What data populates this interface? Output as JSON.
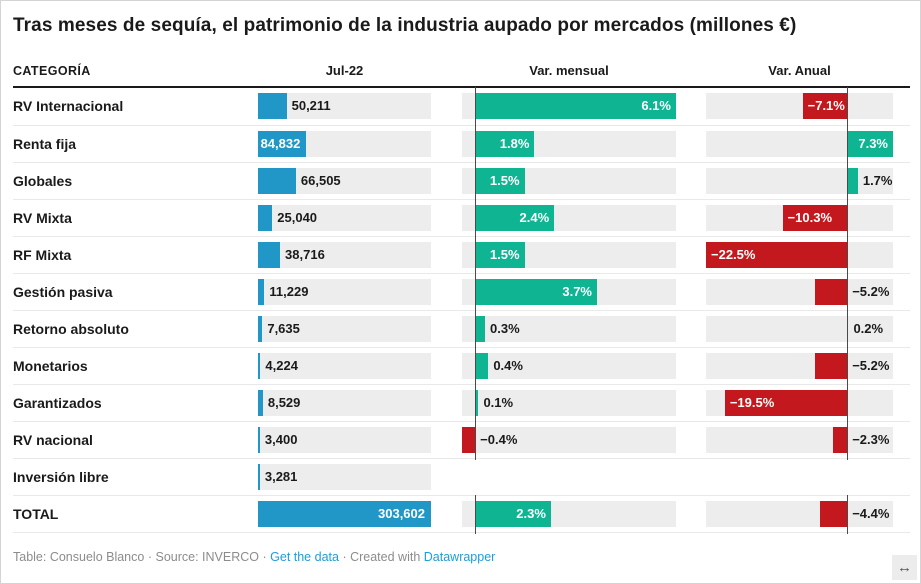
{
  "title": "Tras meses de sequía, el patrimonio de la industria aupado por mercados (millones €)",
  "columns": {
    "category": "CATEGORÍA",
    "jul22": "Jul-22",
    "monthly": "Var. mensual",
    "annual": "Var. Anual"
  },
  "chart_data": {
    "type": "table",
    "title": "Tras meses de sequía, el patrimonio de la industria aupado por mercados (millones €)",
    "bar_columns": {
      "jul22": {
        "label": "Jul-22",
        "max": 303602,
        "color": "#2097c6"
      },
      "monthly": {
        "label": "Var. mensual",
        "domain": [
          -0.4,
          6.1
        ],
        "unit": "%"
      },
      "annual": {
        "label": "Var. Anual",
        "domain": [
          -22.5,
          7.3
        ],
        "unit": "%"
      }
    },
    "rows": [
      {
        "category": "RV Internacional",
        "jul22": 50211,
        "jul22_label": "50,211",
        "monthly": 6.1,
        "monthly_label": "6.1%",
        "annual": -7.1,
        "annual_label": "−7.1%"
      },
      {
        "category": "Renta fija",
        "jul22": 84832,
        "jul22_label": "84,832",
        "monthly": 1.8,
        "monthly_label": "1.8%",
        "annual": 7.3,
        "annual_label": "7.3%"
      },
      {
        "category": "Globales",
        "jul22": 66505,
        "jul22_label": "66,505",
        "monthly": 1.5,
        "monthly_label": "1.5%",
        "annual": 1.7,
        "annual_label": "1.7%"
      },
      {
        "category": "RV Mixta",
        "jul22": 25040,
        "jul22_label": "25,040",
        "monthly": 2.4,
        "monthly_label": "2.4%",
        "annual": -10.3,
        "annual_label": "−10.3%"
      },
      {
        "category": "RF Mixta",
        "jul22": 38716,
        "jul22_label": "38,716",
        "monthly": 1.5,
        "monthly_label": "1.5%",
        "annual": -22.5,
        "annual_label": "−22.5%"
      },
      {
        "category": "Gestión pasiva",
        "jul22": 11229,
        "jul22_label": "11,229",
        "monthly": 3.7,
        "monthly_label": "3.7%",
        "annual": -5.2,
        "annual_label": "−5.2%"
      },
      {
        "category": "Retorno absoluto",
        "jul22": 7635,
        "jul22_label": "7,635",
        "monthly": 0.3,
        "monthly_label": "0.3%",
        "annual": 0.2,
        "annual_label": "0.2%"
      },
      {
        "category": "Monetarios",
        "jul22": 4224,
        "jul22_label": "4,224",
        "monthly": 0.4,
        "monthly_label": "0.4%",
        "annual": -5.2,
        "annual_label": "−5.2%"
      },
      {
        "category": "Garantizados",
        "jul22": 8529,
        "jul22_label": "8,529",
        "monthly": 0.1,
        "monthly_label": "0.1%",
        "annual": -19.5,
        "annual_label": "−19.5%"
      },
      {
        "category": "RV nacional",
        "jul22": 3400,
        "jul22_label": "3,400",
        "monthly": -0.4,
        "monthly_label": "−0.4%",
        "annual": -2.3,
        "annual_label": "−2.3%"
      },
      {
        "category": "Inversión libre",
        "jul22": 3281,
        "jul22_label": "3,281",
        "monthly": null,
        "monthly_label": null,
        "annual": null,
        "annual_label": null
      },
      {
        "category": "TOTAL",
        "jul22": 303602,
        "jul22_label": "303,602",
        "monthly": 2.3,
        "monthly_label": "2.3%",
        "annual": -4.4,
        "annual_label": "−4.4%"
      }
    ]
  },
  "colors": {
    "value_bar": "#2097c6",
    "positive_bar": "#0fb493",
    "negative_bar": "#c3191e",
    "bar_background": "#ededed",
    "baseline": "#4a4a4a"
  },
  "footer": {
    "table_credit": "Table: Consuelo Blanco",
    "source": "Source: INVERCO",
    "get_data_link": "Get the data",
    "created_with": "Created with",
    "datawrapper_link": "Datawrapper",
    "separator": "·"
  },
  "controls": {
    "expand_icon": "↔"
  }
}
